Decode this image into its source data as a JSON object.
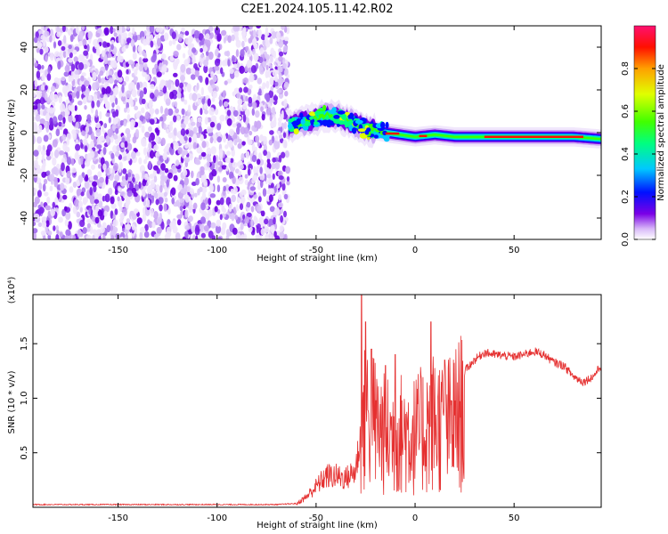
{
  "figure": {
    "title": "C2E1.2024.105.11.42.R02"
  },
  "chart_data": [
    {
      "type": "heatmap",
      "name": "spectrogram",
      "xlabel": "Height of straight line (km)",
      "ylabel": "Frequency (Hz)",
      "xlim": [
        -193,
        94
      ],
      "ylim": [
        -50,
        50
      ],
      "xticks": [
        -150,
        -100,
        -50,
        0,
        50
      ],
      "yticks": [
        -40,
        -20,
        0,
        20,
        40
      ],
      "grid": false,
      "regions": [
        {
          "kind": "noise",
          "x_range": [
            -193,
            -64
          ],
          "y_range": [
            -50,
            50
          ]
        },
        {
          "kind": "signal",
          "x_range": [
            -64,
            94
          ],
          "center_freq_points": [
            [
              -64,
              3
            ],
            [
              -55,
              5
            ],
            [
              -45,
              8
            ],
            [
              -38,
              7
            ],
            [
              -30,
              4
            ],
            [
              -25,
              2
            ],
            [
              -15,
              0
            ],
            [
              0,
              -2
            ],
            [
              10,
              -1
            ],
            [
              20,
              -2
            ],
            [
              40,
              -2
            ],
            [
              60,
              -2
            ],
            [
              80,
              -2
            ],
            [
              94,
              -3
            ]
          ]
        }
      ],
      "colorbar": {
        "label": "Normalized spectral amplitude",
        "range": [
          0.0,
          1.0
        ],
        "ticks": [
          "0.0",
          "0.2",
          "0.4",
          "0.6",
          "0.8"
        ],
        "colors": [
          "#ffffff",
          "#d8b8f8",
          "#7a00e6",
          "#0010ff",
          "#00c8ff",
          "#00ff80",
          "#40ff00",
          "#e0ff00",
          "#ffa000",
          "#ff1000",
          "#ff1070"
        ]
      }
    },
    {
      "type": "line",
      "name": "snr",
      "xlabel": "Height of straight line (km)",
      "ylabel": "SNR (10 * v/v)",
      "y_multiplier": "(x10⁴)",
      "xlim": [
        -193,
        94
      ],
      "ylim": [
        0,
        1.95
      ],
      "xticks": [
        -150,
        -100,
        -50,
        0,
        50
      ],
      "yticks": [
        "0.5",
        "1.0",
        "1.5"
      ],
      "line_color": "#e53030",
      "grid": false,
      "envelope": [
        [
          -193,
          0.02
        ],
        [
          -70,
          0.02
        ],
        [
          -60,
          0.03
        ],
        [
          -55,
          0.1
        ],
        [
          -50,
          0.2
        ],
        [
          -45,
          0.3
        ],
        [
          -40,
          0.3
        ],
        [
          -35,
          0.28
        ],
        [
          -30,
          0.35
        ],
        [
          -27,
          0.8
        ],
        [
          -25,
          1.2
        ],
        [
          -20,
          1.05
        ],
        [
          -15,
          0.9
        ],
        [
          -10,
          0.9
        ],
        [
          -5,
          0.95
        ],
        [
          0,
          0.9
        ],
        [
          5,
          1.0
        ],
        [
          10,
          1.1
        ],
        [
          15,
          1.0
        ],
        [
          20,
          1.1
        ],
        [
          25,
          1.25
        ],
        [
          30,
          1.35
        ],
        [
          35,
          1.42
        ],
        [
          40,
          1.4
        ],
        [
          50,
          1.38
        ],
        [
          55,
          1.4
        ],
        [
          60,
          1.43
        ],
        [
          65,
          1.4
        ],
        [
          70,
          1.33
        ],
        [
          75,
          1.3
        ],
        [
          80,
          1.2
        ],
        [
          85,
          1.15
        ],
        [
          90,
          1.2
        ],
        [
          94,
          1.3
        ]
      ],
      "peaks": [
        [
          -27,
          1.95
        ],
        [
          -25,
          1.7
        ],
        [
          -22,
          1.45
        ],
        [
          -15,
          1.3
        ],
        [
          -10,
          1.4
        ],
        [
          8,
          1.7
        ],
        [
          15,
          1.35
        ]
      ]
    }
  ]
}
